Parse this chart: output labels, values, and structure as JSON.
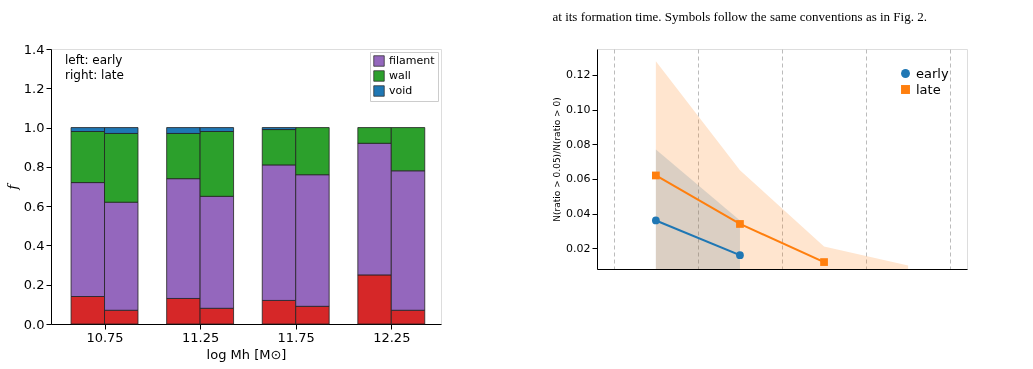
{
  "chart_data": [
    {
      "type": "bar",
      "stacked": true,
      "xlabel": "log Mh [M⊙]",
      "ylabel": "f",
      "x": [
        10.6625,
        10.8375,
        11.1625,
        11.3375,
        11.6625,
        11.8375,
        12.1625,
        12.3375
      ],
      "xlim": [
        10.47,
        12.51
      ],
      "xticks": [
        10.75,
        11.25,
        11.75,
        12.25
      ],
      "ylim": [
        0,
        1.4
      ],
      "yticks": [
        {
          "value": 0,
          "label": "0.0"
        },
        {
          "value": 0.2,
          "label": "0.2"
        },
        {
          "value": 0.4,
          "label": "0.4"
        },
        {
          "value": 0.6,
          "label": "0.6"
        },
        {
          "value": 0.8,
          "label": "0.8"
        },
        {
          "value": 1,
          "label": "1.0"
        },
        {
          "value": 1.2,
          "label": "1.2"
        },
        {
          "value": 1.4,
          "label": "1.4"
        }
      ],
      "legend": "top right",
      "grid": false,
      "annotations": [
        "left: early",
        "right: late"
      ],
      "series": [
        {
          "color": "#d62728",
          "values": [
            0.14,
            0.07,
            0.13,
            0.08,
            0.12,
            0.09,
            0.25,
            0.07
          ]
        },
        {
          "name": "filament",
          "color": "#9467bd",
          "values": [
            0.58,
            0.55,
            0.61,
            0.57,
            0.69,
            0.67,
            0.67,
            0.71
          ]
        },
        {
          "name": "wall",
          "color": "#2ca02c",
          "values": [
            0.26,
            0.35,
            0.23,
            0.33,
            0.18,
            0.24,
            0.08,
            0.22
          ]
        },
        {
          "name": "void",
          "color": "#1f77b4",
          "values": [
            0.02,
            0.03,
            0.03,
            0.02,
            0.01,
            null,
            null,
            null
          ]
        }
      ]
    },
    {
      "type": "line",
      "ylabel": "N(ratio > 0.05)/N(ratio > 0)",
      "categories": [
        null,
        null,
        null,
        null
      ],
      "tick_labels": "y",
      "ylim": [
        0.008,
        0.135
      ],
      "yticks": [
        0.02,
        0.04,
        0.06,
        0.08,
        {
          "value": 0.1,
          "label": "0.10"
        },
        0.12
      ],
      "grid": "x",
      "legend": "top right",
      "annotations": [
        "at its formation time. Symbols follow the same conventions as in Fig. 2."
      ],
      "series": [
        {
          "name": "early",
          "color": "#1f77b4",
          "marker": "circle",
          "values": [
            0.036,
            0.016,
            null,
            null
          ],
          "lower": [
            0.008,
            0.008,
            null,
            null
          ],
          "upper": [
            0.077,
            0.036,
            null,
            null
          ]
        },
        {
          "name": "late",
          "color": "#ff7f0e",
          "marker": "square",
          "values": [
            0.062,
            0.034,
            0.012,
            null
          ],
          "lower": [
            0.008,
            0.008,
            0.008,
            0.008
          ],
          "upper": [
            0.128,
            0.065,
            0.021,
            0.01
          ]
        }
      ]
    }
  ]
}
